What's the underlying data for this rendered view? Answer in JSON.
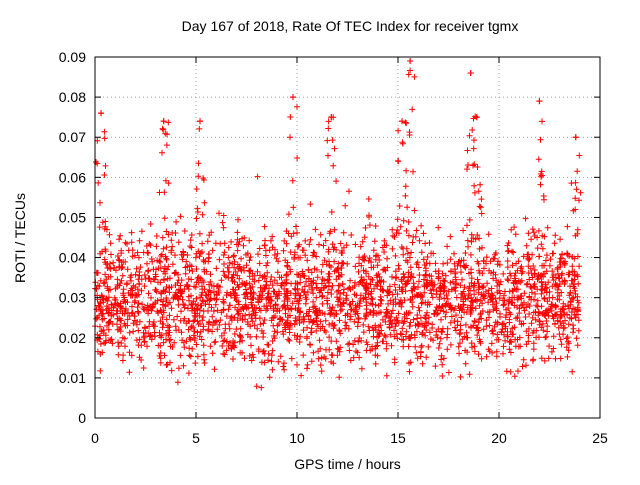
{
  "chart_data": {
    "type": "scatter",
    "title": "Day 167 of 2018, Rate Of TEC Index for receiver tgmx",
    "xlabel": "GPS time / hours",
    "ylabel": "ROTI / TECUs",
    "xlim": [
      0,
      25
    ],
    "ylim": [
      0,
      0.09
    ],
    "x_ticks": [
      "0",
      "5",
      "10",
      "15",
      "20",
      "25"
    ],
    "y_ticks": [
      "0",
      "0.01",
      "0.02",
      "0.03",
      "0.04",
      "0.05",
      "0.06",
      "0.07",
      "0.08",
      "0.09"
    ],
    "grid": true,
    "marker": "+",
    "color": "#ff0000",
    "series": [
      {
        "x_range_hours": [
          0,
          24
        ],
        "typical_range": [
          0.005,
          0.06
        ],
        "peaks": [
          {
            "x": 0.3,
            "y": 0.076
          },
          {
            "x": 3.4,
            "y": 0.074
          },
          {
            "x": 5.2,
            "y": 0.074
          },
          {
            "x": 9.8,
            "y": 0.08
          },
          {
            "x": 11.7,
            "y": 0.075
          },
          {
            "x": 15.2,
            "y": 0.074
          },
          {
            "x": 15.6,
            "y": 0.089
          },
          {
            "x": 18.6,
            "y": 0.086
          },
          {
            "x": 18.9,
            "y": 0.075
          },
          {
            "x": 22.0,
            "y": 0.079
          },
          {
            "x": 23.8,
            "y": 0.07
          }
        ]
      }
    ]
  }
}
